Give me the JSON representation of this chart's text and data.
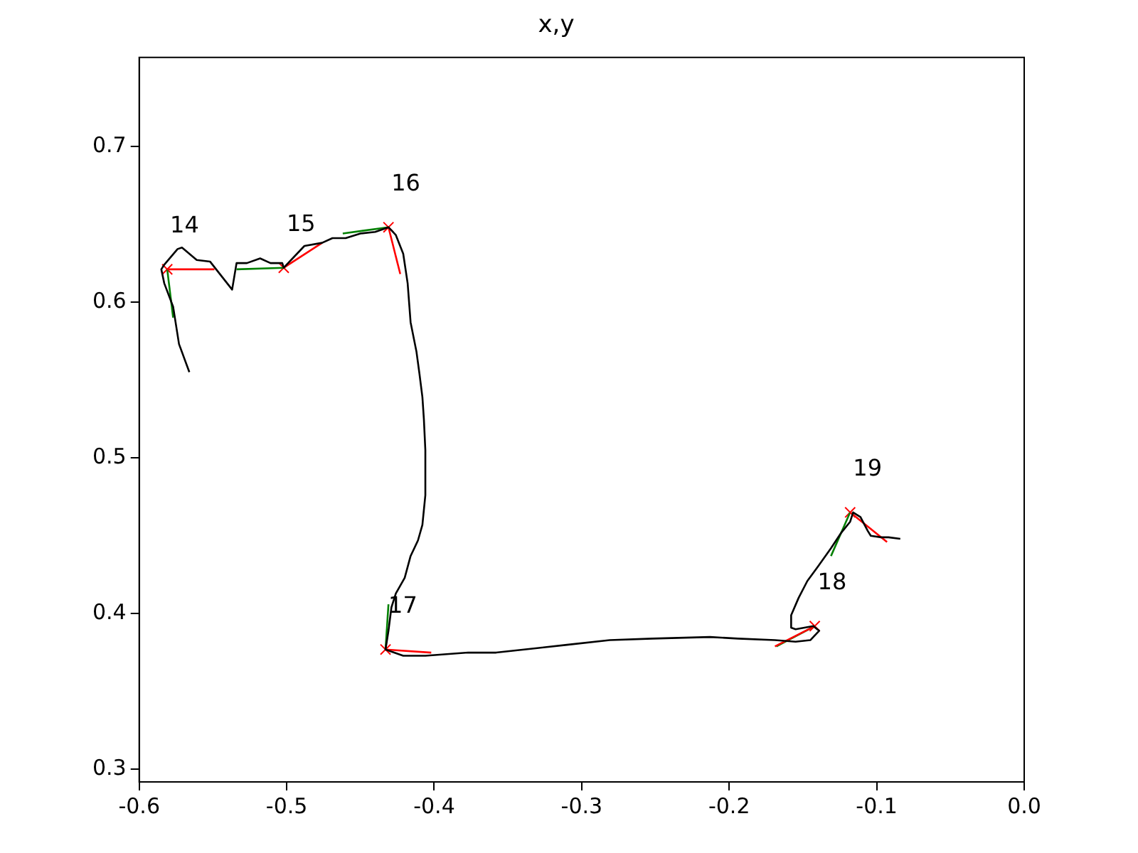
{
  "chart_data": {
    "type": "line",
    "title": "x,y",
    "xlim": [
      -0.6,
      0.0
    ],
    "ylim": [
      0.292,
      0.757
    ],
    "xticks": [
      -0.6,
      -0.5,
      -0.4,
      -0.3,
      -0.2,
      -0.1,
      {
        "value": 0.0,
        "label": "0.0"
      }
    ],
    "yticks": [
      0.3,
      0.4,
      0.5,
      0.6,
      0.7
    ],
    "grid": false,
    "legend": false,
    "annotations": [
      {
        "text": "14",
        "x": -0.581,
        "y": 0.621
      },
      {
        "text": "15",
        "x": -0.502,
        "y": 0.622
      },
      {
        "text": "16",
        "x": -0.431,
        "y": 0.648
      },
      {
        "text": "17",
        "x": -0.433,
        "y": 0.377
      },
      {
        "text": "18",
        "x": -0.142,
        "y": 0.392
      },
      {
        "text": "19",
        "x": -0.118,
        "y": 0.465
      }
    ],
    "series": [
      {
        "type": "line",
        "color": "#000000",
        "marker": "none",
        "x": [
          -0.566,
          -0.573,
          -0.577,
          -0.583,
          -0.585,
          -0.583,
          -0.574,
          -0.571,
          -0.561,
          -0.552,
          -0.537,
          -0.534,
          -0.527,
          -0.518,
          -0.511,
          -0.503,
          -0.502,
          -0.488,
          -0.476,
          -0.469,
          -0.46,
          -0.45,
          -0.44,
          -0.431,
          -0.426,
          -0.421,
          -0.418,
          -0.416,
          -0.412,
          -0.41,
          -0.408,
          -0.407,
          -0.406,
          -0.406,
          -0.408,
          -0.411,
          -0.416,
          -0.42,
          -0.426,
          -0.429,
          -0.431,
          -0.433,
          -0.421,
          -0.406,
          -0.377,
          -0.358,
          -0.329,
          -0.31,
          -0.281,
          -0.252,
          -0.213,
          -0.194,
          -0.169,
          -0.155,
          -0.145,
          -0.139,
          -0.143,
          -0.155,
          -0.158,
          -0.158,
          -0.153,
          -0.147,
          -0.14,
          -0.131,
          -0.124,
          -0.118,
          -0.116,
          -0.111,
          -0.106,
          -0.104,
          -0.097,
          -0.092,
          -0.084
        ],
        "values": [
          0.555,
          0.573,
          0.597,
          0.612,
          0.621,
          0.624,
          0.634,
          0.635,
          0.627,
          0.626,
          0.608,
          0.625,
          0.625,
          0.628,
          0.625,
          0.625,
          0.622,
          0.636,
          0.638,
          0.641,
          0.641,
          0.644,
          0.645,
          0.648,
          0.643,
          0.631,
          0.612,
          0.587,
          0.568,
          0.554,
          0.539,
          0.525,
          0.505,
          0.476,
          0.457,
          0.447,
          0.437,
          0.423,
          0.413,
          0.404,
          0.389,
          0.377,
          0.373,
          0.373,
          0.375,
          0.375,
          0.378,
          0.38,
          0.383,
          0.384,
          0.385,
          0.384,
          0.383,
          0.382,
          0.383,
          0.389,
          0.392,
          0.39,
          0.391,
          0.399,
          0.41,
          0.421,
          0.43,
          0.442,
          0.452,
          0.459,
          0.465,
          0.462,
          0.453,
          0.45,
          0.449,
          0.449,
          0.448
        ]
      },
      {
        "type": "line",
        "color": "#ff0000",
        "marker": "none",
        "x": [
          -0.581,
          -0.549
        ],
        "values": [
          0.621,
          0.621
        ]
      },
      {
        "type": "line",
        "color": "#ff0000",
        "marker": "none",
        "x": [
          -0.502,
          -0.476
        ],
        "values": [
          0.622,
          0.638
        ]
      },
      {
        "type": "line",
        "color": "#ff0000",
        "marker": "none",
        "x": [
          -0.431,
          -0.423
        ],
        "values": [
          0.648,
          0.618
        ]
      },
      {
        "type": "line",
        "color": "#ff0000",
        "marker": "none",
        "x": [
          -0.433,
          -0.402
        ],
        "values": [
          0.377,
          0.375
        ]
      },
      {
        "type": "line",
        "color": "#ff0000",
        "marker": "none",
        "x": [
          -0.142,
          -0.169
        ],
        "values": [
          0.392,
          0.379
        ]
      },
      {
        "type": "line",
        "color": "#ff0000",
        "marker": "none",
        "x": [
          -0.118,
          -0.093
        ],
        "values": [
          0.465,
          0.446
        ]
      },
      {
        "type": "line",
        "color": "#008000",
        "marker": "none",
        "x": [
          -0.581,
          -0.577
        ],
        "values": [
          0.621,
          0.59
        ]
      },
      {
        "type": "line",
        "color": "#008000",
        "marker": "none",
        "x": [
          -0.534,
          -0.502
        ],
        "values": [
          0.621,
          0.622
        ]
      },
      {
        "type": "line",
        "color": "#008000",
        "marker": "none",
        "x": [
          -0.462,
          -0.431
        ],
        "values": [
          0.644,
          0.648
        ]
      },
      {
        "type": "line",
        "color": "#008000",
        "marker": "none",
        "x": [
          -0.431,
          -0.433
        ],
        "values": [
          0.406,
          0.377
        ]
      },
      {
        "type": "line",
        "color": "#008000",
        "marker": "none",
        "x": [
          -0.168,
          -0.142
        ],
        "values": [
          0.379,
          0.392
        ]
      },
      {
        "type": "line",
        "color": "#008000",
        "marker": "none",
        "x": [
          -0.131,
          -0.118
        ],
        "values": [
          0.437,
          0.465
        ]
      },
      {
        "type": "scatter",
        "color": "#ff0000",
        "marker": "cross",
        "x": [
          -0.581,
          -0.502,
          -0.431,
          -0.433,
          -0.142,
          -0.118
        ],
        "values": [
          0.621,
          0.622,
          0.648,
          0.377,
          0.392,
          0.465
        ]
      }
    ]
  }
}
